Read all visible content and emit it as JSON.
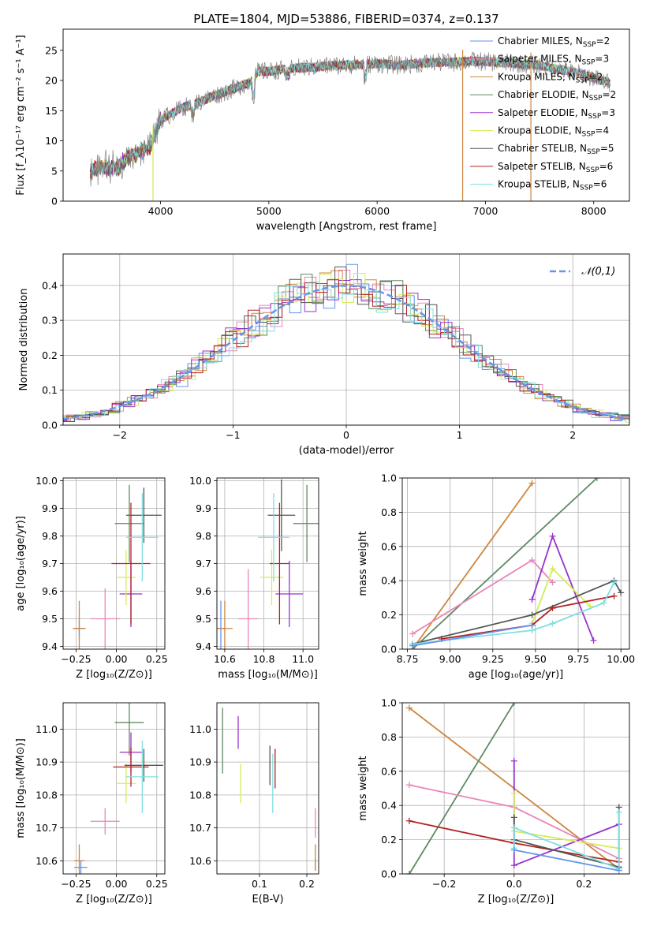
{
  "figure_title": "PLATE=1804, MJD=53886, FIBERID=0374, z=0.137",
  "colors": {
    "Chabrier MILES": "#6495ed",
    "Salpeter MILES": "#e887b8",
    "Kroupa MILES": "#cd853f",
    "Chabrier ELODIE": "#5f8a62",
    "Salpeter ELODIE": "#9932cc",
    "Kroupa ELODIE": "#d4ec5c",
    "Chabrier STELIB": "#555555",
    "Salpeter STELIB": "#b22222",
    "Kroupa STELIB": "#7fdfe0",
    "data": "#808080",
    "gaussian": "#6495ed"
  },
  "chart_data": [
    {
      "id": "spectrum",
      "type": "line",
      "title": "PLATE=1804, MJD=53886, FIBERID=0374, z=0.137",
      "xlabel": "wavelength [Angstrom, rest frame]",
      "ylabel": "Flux [f_λ10⁻¹⁷ erg cm⁻² s⁻¹ A⁻¹]",
      "xlim": [
        3100,
        8330
      ],
      "ylim": [
        0,
        28.5
      ],
      "xticks": [
        "4000",
        "5000",
        "6000",
        "7000",
        "8000"
      ],
      "yticks": [
        "0",
        "5",
        "10",
        "15",
        "20",
        "25"
      ],
      "grid": false,
      "legend_position": "top-right",
      "legend": [
        {
          "name": "Chabrier MILES",
          "nssp": "2"
        },
        {
          "name": "Salpeter MILES",
          "nssp": "3"
        },
        {
          "name": "Kroupa MILES",
          "nssp": "2"
        },
        {
          "name": "Chabrier ELODIE",
          "nssp": "2"
        },
        {
          "name": "Salpeter ELODIE",
          "nssp": "3"
        },
        {
          "name": "Kroupa ELODIE",
          "nssp": "4"
        },
        {
          "name": "Chabrier STELIB",
          "nssp": "5"
        },
        {
          "name": "Salpeter STELIB",
          "nssp": "6"
        },
        {
          "name": "Kroupa STELIB",
          "nssp": "6"
        }
      ],
      "continuum_x": [
        3350,
        3500,
        3600,
        3700,
        3800,
        3900,
        3950,
        4000,
        4100,
        4200,
        4300,
        4500,
        4700,
        4860,
        4900,
        5000,
        5200,
        5400,
        5600,
        5800,
        6000,
        6200,
        6500,
        6700,
        6900,
        7100,
        7300,
        7500,
        7700,
        7900,
        8150
      ],
      "continuum_y": [
        5.0,
        5.6,
        5.4,
        7.5,
        8.0,
        9.0,
        11.5,
        13.5,
        14.5,
        15.5,
        16.0,
        17.5,
        18.8,
        20.0,
        21.5,
        21.5,
        22.0,
        22.2,
        22.5,
        22.6,
        22.8,
        22.5,
        23.0,
        23.0,
        23.2,
        23.0,
        22.8,
        22.5,
        21.8,
        21.0,
        19.5
      ],
      "spikes_to_zero": [
        3930,
        6790,
        7420
      ]
    },
    {
      "id": "residuals",
      "type": "bar",
      "xlabel": "(data-model)/error",
      "ylabel": "Normed distribution",
      "xlim": [
        -2.5,
        2.5
      ],
      "ylim": [
        0,
        0.49
      ],
      "xticks": [
        "−2",
        "−1",
        "0",
        "1",
        "2"
      ],
      "yticks": [
        "0.0",
        "0.1",
        "0.2",
        "0.3",
        "0.4"
      ],
      "grid": true,
      "legend": [
        "𝒩(0,1)"
      ],
      "legend_position": "top-right",
      "gaussian": {
        "mean": 0,
        "sigma": 1
      }
    },
    {
      "id": "age_vs_Z",
      "type": "scatter",
      "xlabel": "Z [log₁₀(Z/Z⊙)]",
      "ylabel": "age  [log₁₀(age/yr)]",
      "xlim": [
        -0.33,
        0.3
      ],
      "ylim": [
        9.39,
        10.01
      ],
      "xticks": [
        "−0.25",
        "0.00",
        "0.25"
      ],
      "yticks": [
        "9.4",
        "9.5",
        "9.6",
        "9.7",
        "9.8",
        "9.9",
        "10.0"
      ],
      "grid": true,
      "points": [
        {
          "model": "Chabrier MILES",
          "x": -0.23,
          "xerr": 0.03,
          "y": 9.465,
          "yerr": 0.03
        },
        {
          "model": "Salpeter MILES",
          "x": -0.07,
          "xerr": 0.09,
          "y": 9.5,
          "yerr": 0.11
        },
        {
          "model": "Kroupa MILES",
          "x": -0.23,
          "xerr": 0.04,
          "y": 9.465,
          "yerr": 0.1
        },
        {
          "model": "Chabrier ELODIE",
          "x": 0.08,
          "xerr": 0.09,
          "y": 9.845,
          "yerr": 0.14
        },
        {
          "model": "Salpeter ELODIE",
          "x": 0.09,
          "xerr": 0.07,
          "y": 9.59,
          "yerr": 0.12
        },
        {
          "model": "Kroupa ELODIE",
          "x": 0.06,
          "xerr": 0.06,
          "y": 9.65,
          "yerr": 0.1
        },
        {
          "model": "Chabrier STELIB",
          "x": 0.17,
          "xerr": 0.11,
          "y": 9.875,
          "yerr": 0.1
        },
        {
          "model": "Salpeter STELIB",
          "x": 0.09,
          "xerr": 0.12,
          "y": 9.7,
          "yerr": 0.22
        },
        {
          "model": "Kroupa STELIB",
          "x": 0.16,
          "xerr": 0.1,
          "y": 9.795,
          "yerr": 0.16
        }
      ]
    },
    {
      "id": "age_vs_mass",
      "type": "scatter",
      "xlabel": "mass [log₁₀(M/M⊙)]",
      "ylabel": "",
      "xlim": [
        10.56,
        11.08
      ],
      "ylim": [
        9.39,
        10.01
      ],
      "xticks": [
        "10.6",
        "10.8",
        "11.0"
      ],
      "yticks": [
        "9.4",
        "9.5",
        "9.6",
        "9.7",
        "9.8",
        "9.9",
        "10.0"
      ],
      "grid": true,
      "points": [
        {
          "model": "Chabrier MILES",
          "x": 10.58,
          "xerr": 0.02,
          "y": 9.465,
          "yerr": 0.1
        },
        {
          "model": "Salpeter MILES",
          "x": 10.72,
          "xerr": 0.05,
          "y": 9.5,
          "yerr": 0.18
        },
        {
          "model": "Kroupa MILES",
          "x": 10.6,
          "xerr": 0.04,
          "y": 9.465,
          "yerr": 0.1
        },
        {
          "model": "Chabrier ELODIE",
          "x": 11.02,
          "xerr": 0.07,
          "y": 9.845,
          "yerr": 0.14
        },
        {
          "model": "Salpeter ELODIE",
          "x": 10.93,
          "xerr": 0.07,
          "y": 9.59,
          "yerr": 0.12
        },
        {
          "model": "Kroupa ELODIE",
          "x": 10.84,
          "xerr": 0.06,
          "y": 9.65,
          "yerr": 0.1
        },
        {
          "model": "Chabrier STELIB",
          "x": 10.89,
          "xerr": 0.07,
          "y": 9.875,
          "yerr": 0.13
        },
        {
          "model": "Salpeter STELIB",
          "x": 10.88,
          "xerr": 0.05,
          "y": 9.7,
          "yerr": 0.22
        },
        {
          "model": "Kroupa STELIB",
          "x": 10.85,
          "xerr": 0.08,
          "y": 9.795,
          "yerr": 0.16
        }
      ]
    },
    {
      "id": "weight_vs_age",
      "type": "line",
      "xlabel": "age  [log₁₀(age/yr)]",
      "ylabel": "mass weight",
      "xlim": [
        8.72,
        10.05
      ],
      "ylim": [
        0,
        1
      ],
      "xticks": [
        "8.75",
        "9.00",
        "9.25",
        "9.50",
        "9.75",
        "10.00"
      ],
      "yticks": [
        "0.0",
        "0.2",
        "0.4",
        "0.6",
        "0.8",
        "1.0"
      ],
      "grid": true,
      "series": [
        {
          "model": "Kroupa MILES",
          "x": [
            8.78,
            9.48
          ],
          "y": [
            0.0,
            0.97
          ]
        },
        {
          "model": "Chabrier ELODIE",
          "x": [
            8.78,
            9.86
          ],
          "y": [
            0.0,
            1.0
          ]
        },
        {
          "model": "Salpeter MILES",
          "x": [
            8.78,
            9.48,
            9.6
          ],
          "y": [
            0.09,
            0.52,
            0.39
          ]
        },
        {
          "model": "Salpeter ELODIE",
          "x": [
            9.48,
            9.6,
            9.84
          ],
          "y": [
            0.29,
            0.66,
            0.05
          ]
        },
        {
          "model": "Kroupa ELODIE",
          "x": [
            9.48,
            9.6,
            9.82
          ],
          "y": [
            0.15,
            0.47,
            0.25
          ]
        },
        {
          "model": "Chabrier STELIB",
          "x": [
            8.78,
            9.48,
            9.96,
            10.0
          ],
          "y": [
            0.03,
            0.2,
            0.4,
            0.33
          ]
        },
        {
          "model": "Salpeter STELIB",
          "x": [
            8.95,
            9.48,
            9.6,
            9.96
          ],
          "y": [
            0.06,
            0.14,
            0.24,
            0.31
          ]
        },
        {
          "model": "Kroupa STELIB",
          "x": [
            8.78,
            9.48,
            9.6,
            9.9,
            9.96
          ],
          "y": [
            0.03,
            0.11,
            0.15,
            0.27,
            0.39
          ]
        },
        {
          "model": "Chabrier MILES",
          "x": [
            8.78,
            9.48
          ],
          "y": [
            0.02,
            0.14
          ]
        }
      ]
    },
    {
      "id": "mass_vs_Z",
      "type": "scatter",
      "xlabel": "Z [log₁₀(Z/Z⊙)]",
      "ylabel": "mass [log₁₀(M/M⊙)]",
      "xlim": [
        -0.33,
        0.3
      ],
      "ylim": [
        10.56,
        11.08
      ],
      "xticks": [
        "−0.25",
        "0.00",
        "0.25"
      ],
      "yticks": [
        "10.6",
        "10.7",
        "10.8",
        "10.9",
        "11.0"
      ],
      "grid": true,
      "points": [
        {
          "model": "Chabrier MILES",
          "x": -0.22,
          "xerr": 0.04,
          "y": 10.58,
          "yerr": 0.02
        },
        {
          "model": "Salpeter MILES",
          "x": -0.07,
          "xerr": 0.09,
          "y": 10.72,
          "yerr": 0.04
        },
        {
          "model": "Kroupa MILES",
          "x": -0.23,
          "xerr": 0.03,
          "y": 10.6,
          "yerr": 0.05
        },
        {
          "model": "Chabrier ELODIE",
          "x": 0.08,
          "xerr": 0.09,
          "y": 11.02,
          "yerr": 0.1
        },
        {
          "model": "Salpeter ELODIE",
          "x": 0.09,
          "xerr": 0.07,
          "y": 10.93,
          "yerr": 0.06
        },
        {
          "model": "Kroupa ELODIE",
          "x": 0.06,
          "xerr": 0.06,
          "y": 10.835,
          "yerr": 0.06
        },
        {
          "model": "Chabrier STELIB",
          "x": 0.17,
          "xerr": 0.12,
          "y": 10.89,
          "yerr": 0.05
        },
        {
          "model": "Salpeter STELIB",
          "x": 0.09,
          "xerr": 0.11,
          "y": 10.885,
          "yerr": 0.06
        },
        {
          "model": "Kroupa STELIB",
          "x": 0.16,
          "xerr": 0.1,
          "y": 10.855,
          "yerr": 0.11
        }
      ]
    },
    {
      "id": "mass_vs_EBV",
      "type": "scatter",
      "xlabel": "E(B-V)",
      "ylabel": "",
      "xlim": [
        0.01,
        0.225
      ],
      "ylim": [
        10.56,
        11.08
      ],
      "xticks": [
        "0.1",
        "0.2"
      ],
      "yticks": [
        "10.6",
        "10.7",
        "10.8",
        "10.9",
        "11.0"
      ],
      "grid": true,
      "points": [
        {
          "model": "Chabrier MILES",
          "x": 0.218,
          "xerr": 0,
          "y": 10.59,
          "yerr": 0.02
        },
        {
          "model": "Salpeter MILES",
          "x": 0.218,
          "xerr": 0,
          "y": 10.715,
          "yerr": 0.045
        },
        {
          "model": "Kroupa MILES",
          "x": 0.218,
          "xerr": 0,
          "y": 10.61,
          "yerr": 0.04
        },
        {
          "model": "Chabrier ELODIE",
          "x": 0.022,
          "xerr": 0,
          "y": 10.965,
          "yerr": 0.1
        },
        {
          "model": "Salpeter ELODIE",
          "x": 0.055,
          "xerr": 0,
          "y": 10.99,
          "yerr": 0.05
        },
        {
          "model": "Kroupa ELODIE",
          "x": 0.06,
          "xerr": 0,
          "y": 10.835,
          "yerr": 0.06
        },
        {
          "model": "Chabrier STELIB",
          "x": 0.122,
          "xerr": 0,
          "y": 10.89,
          "yerr": 0.06
        },
        {
          "model": "Salpeter STELIB",
          "x": 0.133,
          "xerr": 0,
          "y": 10.88,
          "yerr": 0.06
        },
        {
          "model": "Kroupa STELIB",
          "x": 0.128,
          "xerr": 0,
          "y": 10.835,
          "yerr": 0.09
        }
      ]
    },
    {
      "id": "weight_vs_Z",
      "type": "line",
      "xlabel": "Z [log₁₀(Z/Z⊙)]",
      "ylabel": "mass weight",
      "xlim": [
        -0.32,
        0.33
      ],
      "ylim": [
        0,
        1
      ],
      "xticks": [
        "−0.2",
        "0.0",
        "0.2"
      ],
      "yticks": [
        "0.0",
        "0.2",
        "0.4",
        "0.6",
        "0.8",
        "1.0"
      ],
      "grid": true,
      "series": [
        {
          "model": "Kroupa MILES",
          "x": [
            -0.3,
            0.3
          ],
          "y": [
            0.97,
            0.03
          ]
        },
        {
          "model": "Chabrier ELODIE",
          "x": [
            -0.3,
            0.0
          ],
          "y": [
            0.0,
            1.0
          ]
        },
        {
          "model": "Salpeter MILES",
          "x": [
            -0.3,
            0.0,
            0.3
          ],
          "y": [
            0.52,
            0.39,
            0.09
          ]
        },
        {
          "model": "Salpeter STELIB",
          "x": [
            -0.3,
            0.0,
            0.3
          ],
          "y": [
            0.31,
            0.18,
            0.07
          ]
        },
        {
          "model": "Salpeter ELODIE",
          "x": [
            0.0,
            0.0,
            0.3
          ],
          "y": [
            0.66,
            0.05,
            0.29
          ]
        },
        {
          "model": "Kroupa ELODIE",
          "x": [
            0.0,
            0.0,
            0.3
          ],
          "y": [
            0.47,
            0.25,
            0.15
          ]
        },
        {
          "model": "Chabrier STELIB",
          "x": [
            0.0,
            0.0,
            0.3,
            0.3
          ],
          "y": [
            0.33,
            0.2,
            0.04,
            0.39
          ]
        },
        {
          "model": "Kroupa STELIB",
          "x": [
            0.0,
            0.0,
            0.3,
            0.3
          ],
          "y": [
            0.15,
            0.27,
            0.03,
            0.36
          ]
        },
        {
          "model": "Chabrier MILES",
          "x": [
            0.0,
            0.3
          ],
          "y": [
            0.14,
            0.02
          ]
        }
      ]
    }
  ]
}
